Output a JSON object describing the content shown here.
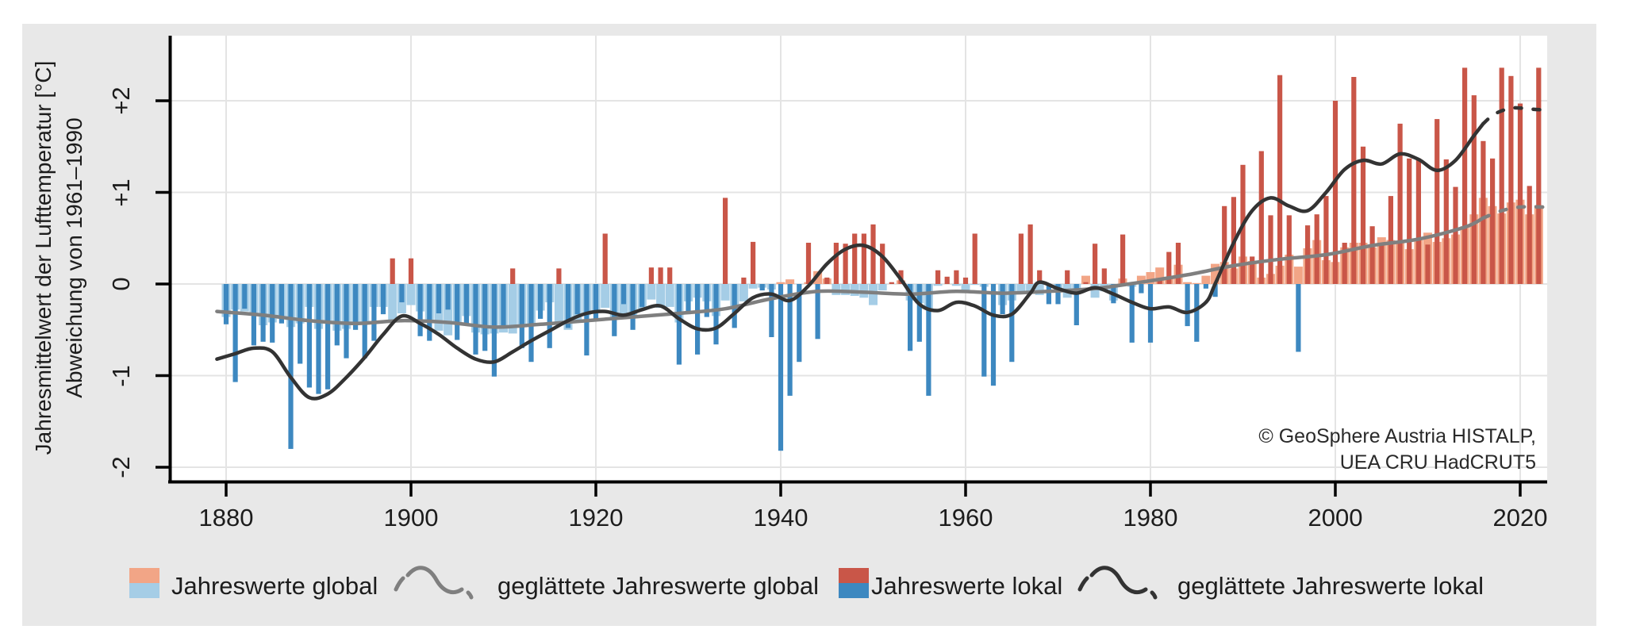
{
  "figure": {
    "background_color": "#e8e8e8",
    "panel_color": "#ffffff",
    "attribution_line1": "© GeoSphere Austria HISTALP,",
    "attribution_line2": "UEA CRU HadCRUT5"
  },
  "axes": {
    "y_title_line1": "Jahresmittelwert der Lufttemperatur [°C]",
    "y_title_line2": "Abweichung von 1961–1990",
    "y_tick_labels": [
      "+2",
      "+1",
      "0",
      "-1",
      "-2"
    ],
    "x_tick_labels": [
      "1880",
      "1900",
      "1920",
      "1940",
      "1960",
      "1980",
      "2000",
      "2020"
    ]
  },
  "legend": {
    "items": [
      {
        "label": "Jahreswerte global",
        "type": "swatch",
        "top_color": "#f2a586",
        "bottom_color": "#a5cde6"
      },
      {
        "label": "geglättete Jahreswerte global",
        "type": "wave",
        "color": "#7f7f7f"
      },
      {
        "label": "Jahreswerte lokal",
        "type": "swatch",
        "top_color": "#c95648",
        "bottom_color": "#3d88c0"
      },
      {
        "label": "geglättete Jahreswerte lokal",
        "type": "wave",
        "color": "#333333"
      }
    ]
  },
  "colors": {
    "global_positive": "#f2a586",
    "global_negative": "#a5cde6",
    "local_positive": "#c95648",
    "local_negative": "#3d88c0",
    "smoothed_global": "#7f7f7f",
    "smoothed_local": "#333333",
    "gridline": "#e4e4e4",
    "axis": "#000000",
    "tick_text": "#1c1c1c"
  },
  "chart_data": {
    "type": "bar+line",
    "title": "",
    "ylabel_line1": "Jahresmittelwert der Lufttemperatur [°C]",
    "ylabel_line2": "Abweichung von 1961–1990",
    "x_ticks": [
      1880,
      1900,
      1920,
      1940,
      1960,
      1980,
      2000,
      2020
    ],
    "y_ticks": [
      {
        "value": 2,
        "label": "+2"
      },
      {
        "value": 1,
        "label": "+1"
      },
      {
        "value": 0,
        "label": "0"
      },
      {
        "value": -1,
        "label": "-1"
      },
      {
        "value": -2,
        "label": "-2"
      }
    ],
    "xlim": [
      1878.5,
      2023.5
    ],
    "ylim": [
      -2.15,
      2.7
    ],
    "grid": true,
    "legend_position": "bottom",
    "years_start": 1880,
    "years_end": 2022,
    "series": [
      {
        "name": "Jahreswerte global",
        "type": "bar",
        "values": [
          -0.36,
          -0.28,
          -0.3,
          -0.33,
          -0.45,
          -0.42,
          -0.38,
          -0.47,
          -0.43,
          -0.25,
          -0.49,
          -0.4,
          -0.51,
          -0.49,
          -0.45,
          -0.43,
          -0.25,
          -0.25,
          -0.42,
          -0.32,
          -0.23,
          -0.3,
          -0.42,
          -0.51,
          -0.56,
          -0.43,
          -0.35,
          -0.53,
          -0.55,
          -0.54,
          -0.53,
          -0.54,
          -0.47,
          -0.45,
          -0.29,
          -0.2,
          -0.42,
          -0.5,
          -0.41,
          -0.34,
          -0.31,
          -0.26,
          -0.36,
          -0.33,
          -0.36,
          -0.27,
          -0.17,
          -0.26,
          -0.25,
          -0.42,
          -0.19,
          -0.15,
          -0.19,
          -0.35,
          -0.18,
          -0.24,
          -0.19,
          -0.05,
          -0.04,
          -0.06,
          0.02,
          0.05,
          0.0,
          0.02,
          0.14,
          0.06,
          -0.12,
          -0.12,
          -0.13,
          -0.15,
          -0.23,
          -0.07,
          0.0,
          0.04,
          -0.18,
          -0.21,
          -0.28,
          -0.02,
          0.0,
          -0.02,
          -0.09,
          -0.01,
          -0.03,
          0.0,
          -0.23,
          -0.18,
          -0.11,
          -0.09,
          -0.12,
          0.0,
          -0.06,
          -0.15,
          -0.05,
          0.09,
          -0.15,
          -0.08,
          -0.18,
          0.06,
          -0.03,
          0.09,
          0.13,
          0.18,
          0.06,
          0.21,
          0.02,
          0.01,
          0.09,
          0.22,
          0.24,
          0.17,
          0.3,
          0.25,
          0.07,
          0.11,
          0.2,
          0.32,
          0.19,
          0.39,
          0.48,
          0.26,
          0.24,
          0.4,
          0.45,
          0.45,
          0.4,
          0.51,
          0.48,
          0.47,
          0.38,
          0.5,
          0.56,
          0.46,
          0.5,
          0.54,
          0.63,
          0.76,
          0.94,
          0.85,
          0.77,
          0.89,
          0.92,
          0.76,
          0.86
        ]
      },
      {
        "name": "Jahreswerte lokal",
        "type": "bar",
        "values": [
          -0.44,
          -1.07,
          -0.27,
          -0.67,
          -0.63,
          -0.64,
          -0.43,
          -1.8,
          -0.87,
          -1.13,
          -1.2,
          -1.15,
          -0.67,
          -0.81,
          -0.5,
          -0.81,
          -0.62,
          -0.33,
          0.28,
          -0.2,
          0.28,
          -0.57,
          -0.62,
          -0.32,
          -0.28,
          -0.61,
          -0.44,
          -0.77,
          -0.73,
          -1.01,
          -0.45,
          0.17,
          -0.7,
          -0.85,
          -0.38,
          -0.7,
          0.17,
          -0.48,
          -0.33,
          -0.78,
          -0.38,
          0.55,
          -0.57,
          -0.22,
          -0.5,
          -0.25,
          0.18,
          0.18,
          0.18,
          -0.88,
          -0.33,
          -0.77,
          -0.36,
          -0.66,
          0.94,
          -0.48,
          0.07,
          0.46,
          -0.07,
          -0.58,
          -1.82,
          -1.22,
          -0.85,
          0.45,
          -0.6,
          0.07,
          0.45,
          0.44,
          0.55,
          0.55,
          0.65,
          0.44,
          0.02,
          0.15,
          -0.73,
          -0.63,
          -1.22,
          0.15,
          0.08,
          0.15,
          0.07,
          0.55,
          -1.01,
          -1.11,
          -0.33,
          -0.85,
          0.55,
          0.65,
          0.15,
          -0.22,
          -0.22,
          0.15,
          -0.45,
          0.02,
          0.44,
          0.17,
          -0.21,
          0.54,
          -0.64,
          -0.1,
          -0.64,
          0.05,
          0.35,
          0.45,
          -0.46,
          -0.63,
          -0.05,
          -0.14,
          0.85,
          0.95,
          1.3,
          0.3,
          1.45,
          0.75,
          2.28,
          0.75,
          -0.74,
          0.64,
          0.76,
          0.96,
          2.0,
          0.45,
          2.26,
          1.5,
          0.63,
          0.45,
          0.96,
          1.75,
          1.37,
          1.37,
          0.43,
          1.8,
          1.36,
          1.06,
          2.36,
          2.06,
          1.56,
          1.37,
          2.36,
          2.27,
          1.97,
          1.07,
          2.36
        ]
      },
      {
        "name": "geglättete Jahreswerte global",
        "type": "line",
        "solid_anchors": [
          [
            1879,
            -0.3
          ],
          [
            1884,
            -0.34
          ],
          [
            1889,
            -0.4
          ],
          [
            1894,
            -0.43
          ],
          [
            1899,
            -0.4
          ],
          [
            1904,
            -0.42
          ],
          [
            1909,
            -0.47
          ],
          [
            1914,
            -0.44
          ],
          [
            1919,
            -0.4
          ],
          [
            1924,
            -0.36
          ],
          [
            1929,
            -0.32
          ],
          [
            1934,
            -0.27
          ],
          [
            1939,
            -0.16
          ],
          [
            1944,
            -0.08
          ],
          [
            1949,
            -0.09
          ],
          [
            1954,
            -0.11
          ],
          [
            1959,
            -0.08
          ],
          [
            1964,
            -0.1
          ],
          [
            1969,
            -0.08
          ],
          [
            1974,
            -0.05
          ],
          [
            1979,
            0.02
          ],
          [
            1984,
            0.1
          ],
          [
            1989,
            0.2
          ],
          [
            1994,
            0.27
          ],
          [
            1999,
            0.32
          ],
          [
            2004,
            0.42
          ],
          [
            2009,
            0.49
          ],
          [
            2014,
            0.62
          ],
          [
            2016,
            0.72
          ]
        ],
        "dashed_anchors": [
          [
            2016,
            0.72
          ],
          [
            2018,
            0.8
          ],
          [
            2020,
            0.84
          ],
          [
            2022.5,
            0.84
          ]
        ]
      },
      {
        "name": "geglättete Jahreswerte lokal",
        "type": "line",
        "solid_anchors": [
          [
            1879,
            -0.82
          ],
          [
            1881,
            -0.76
          ],
          [
            1883,
            -0.7
          ],
          [
            1885,
            -0.74
          ],
          [
            1887,
            -1.02
          ],
          [
            1889,
            -1.24
          ],
          [
            1891,
            -1.2
          ],
          [
            1893,
            -1.02
          ],
          [
            1895,
            -0.8
          ],
          [
            1897,
            -0.55
          ],
          [
            1899,
            -0.35
          ],
          [
            1901,
            -0.43
          ],
          [
            1903,
            -0.55
          ],
          [
            1905,
            -0.7
          ],
          [
            1907,
            -0.82
          ],
          [
            1909,
            -0.85
          ],
          [
            1911,
            -0.74
          ],
          [
            1913,
            -0.62
          ],
          [
            1915,
            -0.51
          ],
          [
            1917,
            -0.4
          ],
          [
            1919,
            -0.32
          ],
          [
            1921,
            -0.3
          ],
          [
            1923,
            -0.34
          ],
          [
            1925,
            -0.28
          ],
          [
            1927,
            -0.24
          ],
          [
            1929,
            -0.38
          ],
          [
            1931,
            -0.49
          ],
          [
            1933,
            -0.48
          ],
          [
            1935,
            -0.32
          ],
          [
            1937,
            -0.15
          ],
          [
            1939,
            -0.11
          ],
          [
            1941,
            -0.18
          ],
          [
            1943,
            -0.02
          ],
          [
            1945,
            0.22
          ],
          [
            1947,
            0.38
          ],
          [
            1949,
            0.42
          ],
          [
            1951,
            0.3
          ],
          [
            1953,
            0.05
          ],
          [
            1955,
            -0.22
          ],
          [
            1957,
            -0.29
          ],
          [
            1959,
            -0.2
          ],
          [
            1961,
            -0.24
          ],
          [
            1963,
            -0.34
          ],
          [
            1965,
            -0.33
          ],
          [
            1967,
            -0.1
          ],
          [
            1968,
            0.02
          ],
          [
            1970,
            -0.05
          ],
          [
            1972,
            -0.1
          ],
          [
            1974,
            -0.04
          ],
          [
            1976,
            -0.11
          ],
          [
            1978,
            -0.2
          ],
          [
            1980,
            -0.27
          ],
          [
            1982,
            -0.25
          ],
          [
            1984,
            -0.31
          ],
          [
            1986,
            -0.2
          ],
          [
            1987,
            0.0
          ],
          [
            1989,
            0.45
          ],
          [
            1991,
            0.8
          ],
          [
            1993,
            0.94
          ],
          [
            1995,
            0.85
          ],
          [
            1997,
            0.8
          ],
          [
            1999,
            1.0
          ],
          [
            2001,
            1.25
          ],
          [
            2003,
            1.35
          ],
          [
            2005,
            1.31
          ],
          [
            2007,
            1.42
          ],
          [
            2009,
            1.36
          ],
          [
            2011,
            1.24
          ],
          [
            2013,
            1.35
          ],
          [
            2015,
            1.62
          ],
          [
            2016,
            1.75
          ]
        ],
        "dashed_anchors": [
          [
            2016,
            1.75
          ],
          [
            2017,
            1.84
          ],
          [
            2018,
            1.89
          ],
          [
            2019,
            1.92
          ],
          [
            2020,
            1.92
          ],
          [
            2021,
            1.91
          ],
          [
            2022.5,
            1.9
          ]
        ]
      }
    ]
  }
}
